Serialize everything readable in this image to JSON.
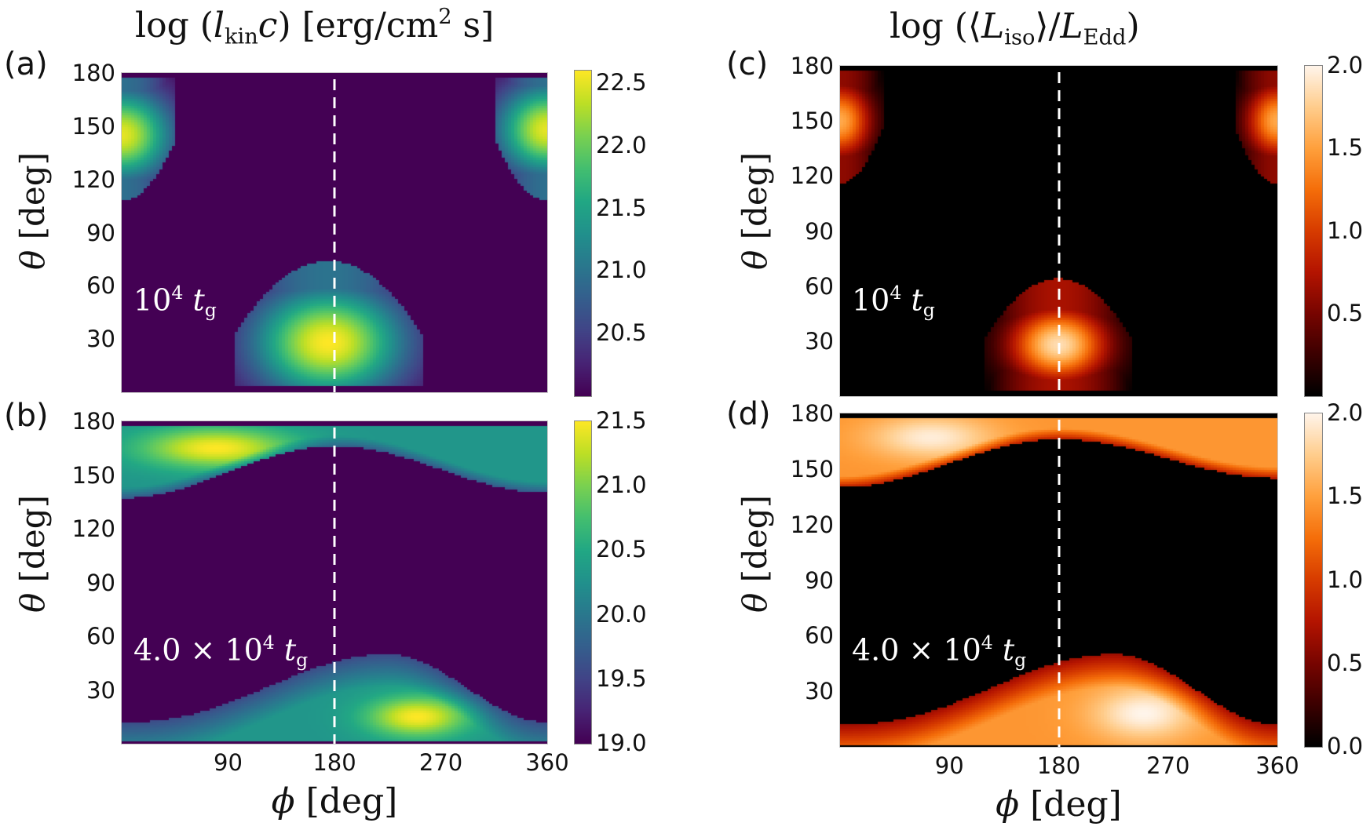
{
  "figure": {
    "titles": {
      "left": {
        "pre": "log (",
        "var": "l",
        "sub": "kin",
        "post_var": "c",
        "post": ") [erg/cm",
        "sup": "2",
        "tail": " s]"
      },
      "right": {
        "pre": "log (⟨",
        "var": "L",
        "sub": "iso",
        "mid": "⟩/",
        "var2": "L",
        "sub2": "Edd",
        "post": ")"
      }
    },
    "axis_labels": {
      "y": {
        "sym": "θ",
        "unit": " [deg]"
      },
      "x": {
        "sym": "ϕ",
        "unit": " [deg]"
      }
    }
  },
  "chart_data": [
    {
      "id": "a",
      "type": "heatmap",
      "panel_label": "(a)",
      "title": "log (l_kin c) [erg/cm^2 s]",
      "xlabel": "",
      "ylabel": "θ [deg]",
      "xlim": [
        0,
        360
      ],
      "ylim": [
        0,
        180
      ],
      "yticks": [
        30,
        60,
        90,
        120,
        150,
        180
      ],
      "xticks": [],
      "colormap": "viridis",
      "colorbar": {
        "range": [
          20.0,
          22.6
        ],
        "ticks": [
          "20.5",
          "21.0",
          "21.5",
          "22.0",
          "22.5"
        ],
        "tick_values": [
          20.5,
          21.0,
          21.5,
          22.0,
          22.5
        ]
      },
      "annotation": {
        "mantissa": "",
        "base": "10",
        "exp": "4",
        "var": "t",
        "sub": "g"
      },
      "reference_line": {
        "phi": 180,
        "style": "dashed",
        "color": "#ffffff"
      },
      "background_value": 20.0,
      "features": [
        {
          "kind": "blob",
          "phi": 175,
          "theta": 28,
          "peak": 22.6,
          "sphi": 45,
          "stheta": 22,
          "edge_theta": 70,
          "half_width_phi": 80
        },
        {
          "kind": "blob",
          "phi": 0,
          "theta": 145,
          "peak": 22.5,
          "sphi": 30,
          "stheta": 18,
          "edge_theta": 112,
          "half_width_phi": 45
        },
        {
          "kind": "blob",
          "phi": 360,
          "theta": 148,
          "peak": 22.5,
          "sphi": 30,
          "stheta": 18,
          "edge_theta": 112,
          "half_width_phi": 45
        }
      ]
    },
    {
      "id": "b",
      "type": "heatmap",
      "panel_label": "(b)",
      "xlabel": "ϕ [deg]",
      "ylabel": "θ [deg]",
      "xlim": [
        0,
        360
      ],
      "ylim": [
        0,
        180
      ],
      "yticks": [
        30,
        60,
        90,
        120,
        150,
        180
      ],
      "xticks": [
        90,
        180,
        270,
        360
      ],
      "colormap": "viridis",
      "colorbar": {
        "range": [
          19.0,
          21.5
        ],
        "ticks": [
          "19.0",
          "19.5",
          "20.0",
          "20.5",
          "21.0",
          "21.5"
        ],
        "tick_values": [
          19.0,
          19.5,
          20.0,
          20.5,
          21.0,
          21.5
        ]
      },
      "annotation": {
        "mantissa": "4.0 × ",
        "base": "10",
        "exp": "4",
        "var": "t",
        "sub": "g"
      },
      "reference_line": {
        "phi": 180,
        "style": "dashed",
        "color": "#ffffff"
      },
      "background_value": 19.0,
      "features": [
        {
          "kind": "upper_band",
          "boundary_theta_at_phi0": 137,
          "boundary_theta_at_phi180": 166,
          "boundary_theta_at_phi360": 140,
          "base_value": 20.3,
          "hotspot": {
            "phi": 80,
            "theta": 165,
            "peak": 21.5,
            "sphi": 45,
            "stheta": 8
          }
        },
        {
          "kind": "lower_band",
          "boundary_theta_at_phi0": 12,
          "boundary_theta_at_phi225": 50,
          "boundary_theta_at_phi360": 12,
          "base_value": 20.3,
          "hotspot": {
            "phi": 250,
            "theta": 15,
            "peak": 21.5,
            "sphi": 30,
            "stheta": 8
          }
        }
      ]
    },
    {
      "id": "c",
      "type": "heatmap",
      "panel_label": "(c)",
      "title": "log (⟨L_iso⟩/L_Edd)",
      "xlabel": "",
      "ylabel": "θ [deg]",
      "xlim": [
        0,
        360
      ],
      "ylim": [
        0,
        180
      ],
      "yticks": [
        30,
        60,
        90,
        120,
        150,
        180
      ],
      "xticks": [],
      "colormap": "gist_heat",
      "colorbar": {
        "range": [
          0.0,
          2.0
        ],
        "ticks": [
          "0.5",
          "1.0",
          "1.5",
          "2.0"
        ],
        "tick_values": [
          0.5,
          1.0,
          1.5,
          2.0
        ]
      },
      "annotation": {
        "mantissa": "",
        "base": "10",
        "exp": "4",
        "var": "t",
        "sub": "g"
      },
      "reference_line": {
        "phi": 180,
        "style": "dashed",
        "color": "#ffffff"
      },
      "background_value": 0.0,
      "features": [
        {
          "kind": "blob",
          "phi": 180,
          "theta": 28,
          "peak": 1.85,
          "sphi": 28,
          "stheta": 14,
          "edge_theta": 60,
          "half_width_phi": 60
        },
        {
          "kind": "blob",
          "phi": 0,
          "theta": 150,
          "peak": 1.55,
          "sphi": 18,
          "stheta": 14,
          "edge_theta": 120,
          "half_width_phi": 35
        },
        {
          "kind": "blob",
          "phi": 360,
          "theta": 150,
          "peak": 1.55,
          "sphi": 18,
          "stheta": 14,
          "edge_theta": 120,
          "half_width_phi": 35
        }
      ]
    },
    {
      "id": "d",
      "type": "heatmap",
      "panel_label": "(d)",
      "xlabel": "ϕ [deg]",
      "ylabel": "θ [deg]",
      "xlim": [
        0,
        360
      ],
      "ylim": [
        0,
        180
      ],
      "yticks": [
        30,
        60,
        90,
        120,
        150,
        180
      ],
      "xticks": [
        90,
        180,
        270,
        360
      ],
      "colormap": "gist_heat",
      "colorbar": {
        "range": [
          0.0,
          2.0
        ],
        "ticks": [
          "0.0",
          "0.5",
          "1.0",
          "1.5",
          "2.0"
        ],
        "tick_values": [
          0.0,
          0.5,
          1.0,
          1.5,
          2.0
        ]
      },
      "annotation": {
        "mantissa": "4.0 × ",
        "base": "10",
        "exp": "4",
        "var": "t",
        "sub": "g"
      },
      "reference_line": {
        "phi": 180,
        "style": "dashed",
        "color": "#ffffff"
      },
      "background_value": 0.0,
      "features": [
        {
          "kind": "upper_band",
          "boundary_theta_at_phi0": 140,
          "boundary_theta_at_phi180": 166,
          "boundary_theta_at_phi360": 145,
          "base_value": 1.45,
          "hotspot": {
            "phi": 75,
            "theta": 167,
            "peak": 1.95,
            "sphi": 35,
            "stheta": 8
          }
        },
        {
          "kind": "lower_band",
          "boundary_theta_at_phi0": 12,
          "boundary_theta_at_phi225": 50,
          "boundary_theta_at_phi360": 12,
          "base_value": 1.45,
          "hotspot": {
            "phi": 250,
            "theta": 18,
            "peak": 2.0,
            "sphi": 30,
            "stheta": 10
          }
        }
      ]
    }
  ]
}
